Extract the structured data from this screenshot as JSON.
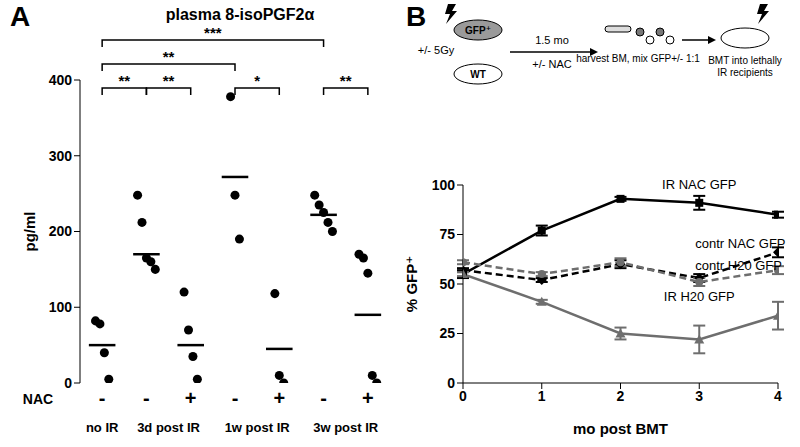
{
  "chart_data": [
    {
      "type": "scatter",
      "panel_label": "A",
      "title": "plasma 8-isoPGF2α",
      "y_label": "pg/ml",
      "x_label": "NAC",
      "categories": [
        "-",
        "-",
        "+",
        "-",
        "+",
        "-",
        "+"
      ],
      "groups": [
        {
          "label": "no IR",
          "count": 1
        },
        {
          "label": "3d post IR",
          "count": 2
        },
        {
          "label": "1w post IR",
          "count": 2
        },
        {
          "label": "3w post IR",
          "count": 2
        }
      ],
      "values": [
        [
          82,
          78,
          40,
          5
        ],
        [
          248,
          212,
          165,
          160,
          150
        ],
        [
          120,
          70,
          35,
          5
        ],
        [
          378,
          248,
          190
        ],
        [
          118,
          10,
          0
        ],
        [
          248,
          235,
          225,
          212,
          200
        ],
        [
          170,
          165,
          145,
          10,
          0
        ]
      ],
      "means": [
        50,
        170,
        50,
        272,
        45,
        222,
        90
      ],
      "ylim": [
        0,
        400
      ],
      "yticks": [
        0,
        100,
        200,
        300,
        400
      ],
      "color": "#000000",
      "marker": "circle",
      "brackets": [
        {
          "from": 0,
          "to": 1,
          "label": "**"
        },
        {
          "from": 1,
          "to": 2,
          "label": "**"
        },
        {
          "from": 3,
          "to": 4,
          "label": "*"
        },
        {
          "from": 0,
          "to": 3,
          "label": "**"
        },
        {
          "from": 5,
          "to": 6,
          "label": "**"
        },
        {
          "from": 0,
          "to": 5,
          "label": "***"
        }
      ]
    },
    {
      "type": "line",
      "panel_label": "B",
      "x_label": "mo post BMT",
      "y_label": "% GFP⁺",
      "x": [
        0,
        1,
        2,
        3,
        4
      ],
      "xlim": [
        0,
        4
      ],
      "xticks": [
        0,
        1,
        2,
        3,
        4
      ],
      "ylim": [
        0,
        100
      ],
      "yticks": [
        0,
        25,
        50,
        75,
        100
      ],
      "series": [
        {
          "name": "IR NAC GFP",
          "color": "#000000",
          "line_style": "solid",
          "marker": "square",
          "values": [
            55,
            77,
            93,
            91,
            85
          ],
          "errors": [
            2,
            2.5,
            1,
            3.5,
            1.5
          ]
        },
        {
          "name": "contr NAC GFP",
          "color": "#000000",
          "line_style": "dashed",
          "marker": "diamond",
          "values": [
            57,
            52,
            60,
            53,
            66
          ],
          "errors": [
            1,
            1,
            2,
            2,
            2.5
          ]
        },
        {
          "name": "contr H20 GFP",
          "color": "#6e6e6e",
          "line_style": "dashed",
          "marker": "circle",
          "values": [
            61,
            55,
            61,
            51,
            57
          ],
          "errors": [
            1,
            1,
            2,
            2,
            2
          ]
        },
        {
          "name": "IR H20 GFP",
          "color": "#6e6e6e",
          "line_style": "solid",
          "marker": "triangle",
          "values": [
            55,
            41,
            25,
            22,
            34
          ],
          "errors": [
            1,
            1,
            3,
            7,
            7
          ]
        }
      ],
      "annotations": [
        "GFP⁺",
        "WT",
        "+/- 5Gy",
        "1.5 mo",
        "+/- NAC",
        "harvest BM, mix GFP+/- 1:1",
        "BMT into lethally IR recipients"
      ]
    }
  ]
}
